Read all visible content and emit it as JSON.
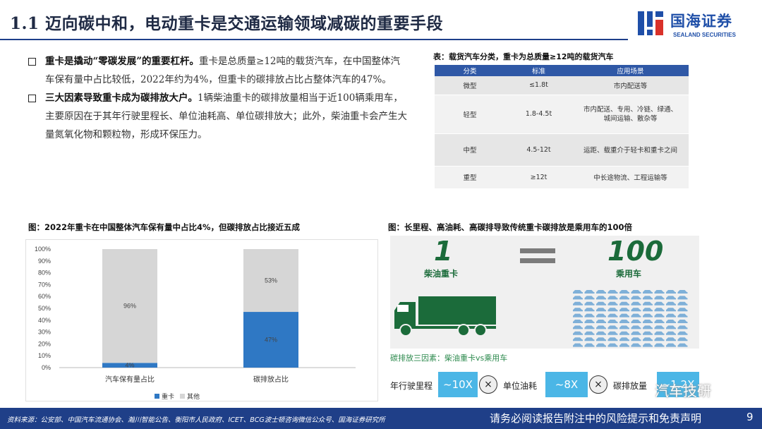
{
  "header": {
    "title": "1.1 迈向碳中和，电动重卡是交通运输领域减碳的重要手段",
    "logo_cn": "国海证券",
    "logo_en": "SEALAND SECURITIES"
  },
  "bullets": [
    {
      "bold": "重卡是撬动“零碳发展”的重要杠杆。",
      "text": "重卡是总质量≥12吨的载货汽车，在中国整体汽车保有量中占比较低，2022年约为4%，但重卡的碳排放占比占整体汽车的47%。"
    },
    {
      "bold": "三大因素导致重卡成为碳排放大户。",
      "text": "1辆柴油重卡的碳排放量相当于近100辆乘用车，主要原因在于其年行驶里程长、单位油耗高、单位碳排放大；此外，柴油重卡会产生大量氮氧化物和颗粒物，形成环保压力。"
    }
  ],
  "table": {
    "caption": "表：载货汽车分类，重卡为总质量≥12吨的载货汽车",
    "headers": [
      "分类",
      "标准",
      "应用场景"
    ],
    "rows": [
      {
        "type": "微型",
        "standard": "≤1.8t",
        "scene": "市内配送等",
        "scene2": ""
      },
      {
        "type": "轻型",
        "standard": "1.8-4.5t",
        "scene": "市内配送、专用、冷链、绿通、",
        "scene2": "城间运输、散杂等"
      },
      {
        "type": "中型",
        "standard": "4.5-12t",
        "scene": "运距、载重介于轻卡和重卡之间",
        "scene2": ""
      },
      {
        "type": "重型",
        "standard": "≥12t",
        "scene": "中长途物流、工程运输等",
        "scene2": ""
      }
    ]
  },
  "chart_caption": "图：2022年重卡在中国整体汽车保有量中占比4%，但碳排放占比接近五成",
  "chart_data": {
    "type": "bar",
    "stacked": true,
    "percent": true,
    "categories": [
      "汽车保有量占比",
      "碳排放占比"
    ],
    "series": [
      {
        "name": "重卡",
        "values": [
          4,
          47
        ],
        "labels": [
          "4%",
          "47%"
        ],
        "color": "#2f78c4"
      },
      {
        "name": "其他",
        "values": [
          96,
          53
        ],
        "labels": [
          "96%",
          "53%"
        ],
        "color": "#d6d6d6"
      }
    ],
    "yticks": [
      "0%",
      "10%",
      "20%",
      "30%",
      "40%",
      "50%",
      "60%",
      "70%",
      "80%",
      "90%",
      "100%"
    ],
    "ylim": [
      0,
      100
    ],
    "legend": "bottom"
  },
  "info": {
    "caption": "图：长里程、高油耗、高碳排导致传统重卡碳排放是乘用车的100倍",
    "left_number": "1",
    "left_label": "柴油重卡",
    "right_number": "100",
    "right_label": "乘用车",
    "factor_title": "碳排放三因素：柴油重卡vs乘用车",
    "factors": [
      {
        "label": "年行驶里程",
        "value": "~10X"
      },
      {
        "label": "单位油耗",
        "value": "~8X"
      },
      {
        "label": "碳排放量",
        "value": "~1.2X"
      }
    ],
    "times_symbol": "×",
    "colors": {
      "green": "#1b6b3a",
      "accent": "#4bb6e6"
    }
  },
  "footer": {
    "source": "资料来源：公安部、中国汽车流通协会、瀚川智能公告、衡阳市人民政府、ICET、BCG波士顿咨询微信公众号、国海证券研究所",
    "disclaimer": "请务必阅读报告附注中的风险提示和免责声明",
    "page": "9",
    "watermark": "汽车技研"
  }
}
